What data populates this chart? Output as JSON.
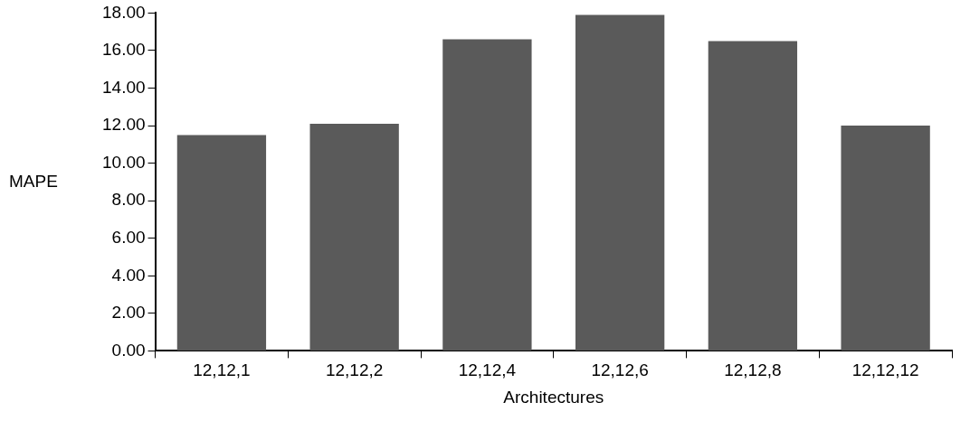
{
  "chart_data": {
    "type": "bar",
    "xlabel": "Architectures",
    "ylabel": "MAPE",
    "categories": [
      "12,12,1",
      "12,12,2",
      "12,12,4",
      "12,12,6",
      "12,12,8",
      "12,12,12"
    ],
    "values": [
      11.5,
      12.1,
      16.6,
      17.9,
      16.5,
      12.0
    ],
    "color": "#5a5a5a",
    "ylim": [
      0,
      18
    ],
    "yticks": [
      {
        "value": 0,
        "label": "0.00"
      },
      {
        "value": 2,
        "label": "2.00"
      },
      {
        "value": 4,
        "label": "4.00"
      },
      {
        "value": 6,
        "label": "6.00"
      },
      {
        "value": 8,
        "label": "8.00"
      },
      {
        "value": 10,
        "label": "10.00"
      },
      {
        "value": 12,
        "label": "12.00"
      },
      {
        "value": 14,
        "label": "14.00"
      },
      {
        "value": 16,
        "label": "16.00"
      },
      {
        "value": 18,
        "label": "18.00"
      }
    ],
    "grid": false,
    "legend": false
  }
}
